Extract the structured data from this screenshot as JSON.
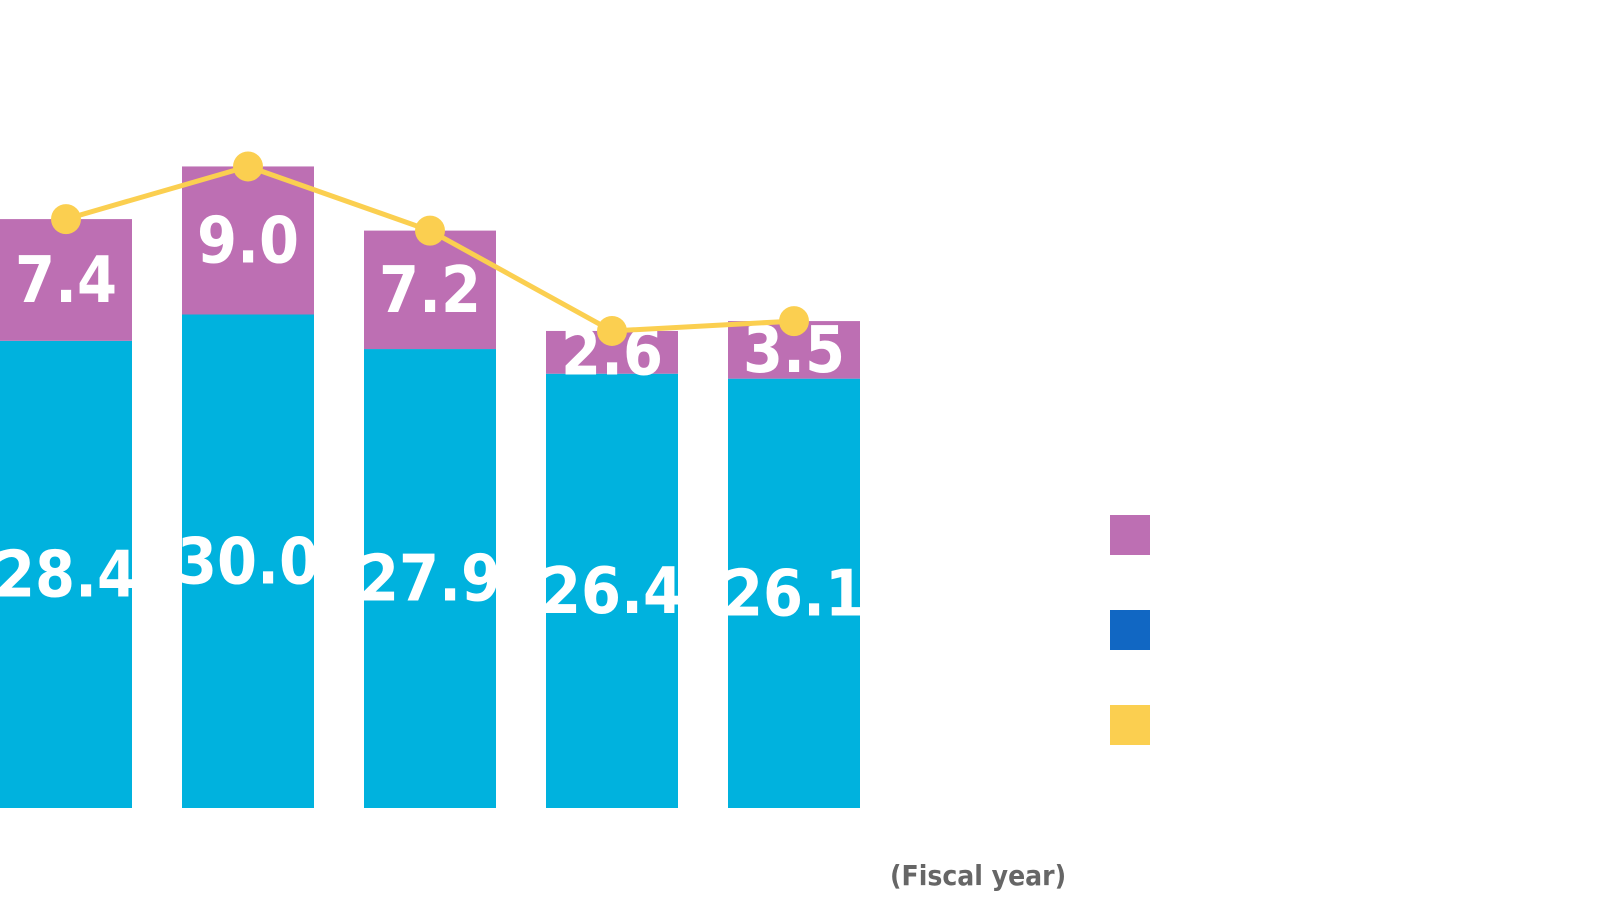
{
  "chart_data": {
    "type": "bar",
    "stacked": true,
    "categories": [
      "",
      "",
      "",
      "",
      ""
    ],
    "series": [
      {
        "values": [
          28.4,
          30.0,
          27.9,
          26.4,
          26.1
        ],
        "color": "#00b2de"
      },
      {
        "values": [
          7.4,
          9.0,
          7.2,
          2.6,
          3.5
        ],
        "color": "#bd6fb3"
      }
    ],
    "line_series": {
      "values": [
        35.8,
        39.0,
        35.1,
        29.0,
        29.6
      ],
      "color": "#fbcf50"
    },
    "labels": {
      "lower": [
        "28.4",
        "30.0",
        "27.9",
        "26.4",
        "26.1"
      ],
      "upper": [
        "7.4",
        "9.0",
        "7.2",
        "2.6",
        "3.5"
      ]
    },
    "legend": {
      "placement": "right",
      "swatches": [
        {
          "color": "#bd6fb3"
        },
        {
          "color": "#1167c3"
        },
        {
          "color": "#fbcf50"
        }
      ]
    },
    "xlabel": "(Fiscal year)",
    "ylim": [
      0,
      40
    ]
  }
}
